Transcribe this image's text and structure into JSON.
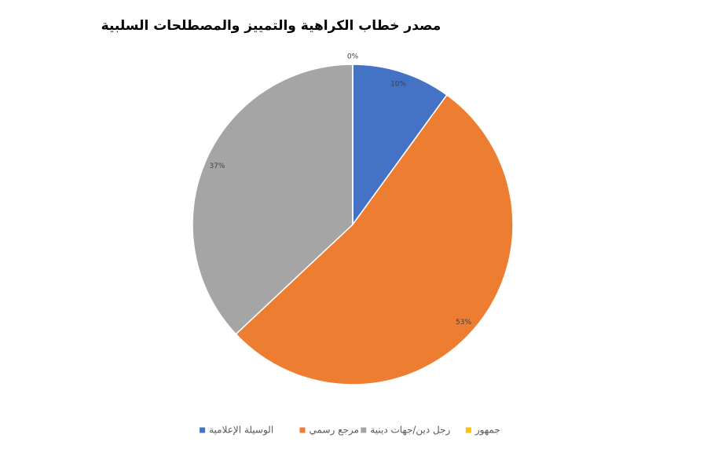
{
  "chart_data": {
    "type": "pie",
    "title": "مصدر خطاب الكراهية والتمييز والمصطلحات السلبية",
    "categories": [
      "الوسيلة الإعلامية",
      "مرجع رسمي",
      "رجل دين/جهات دينية",
      "جمهور"
    ],
    "values": [
      10,
      53,
      37,
      0
    ],
    "value_labels": [
      "10%",
      "53%",
      "37%",
      "0%"
    ],
    "colors": [
      "#4472c4",
      "#ed7d31",
      "#a5a5a5",
      "#ffc000"
    ],
    "legend": "bottom"
  }
}
